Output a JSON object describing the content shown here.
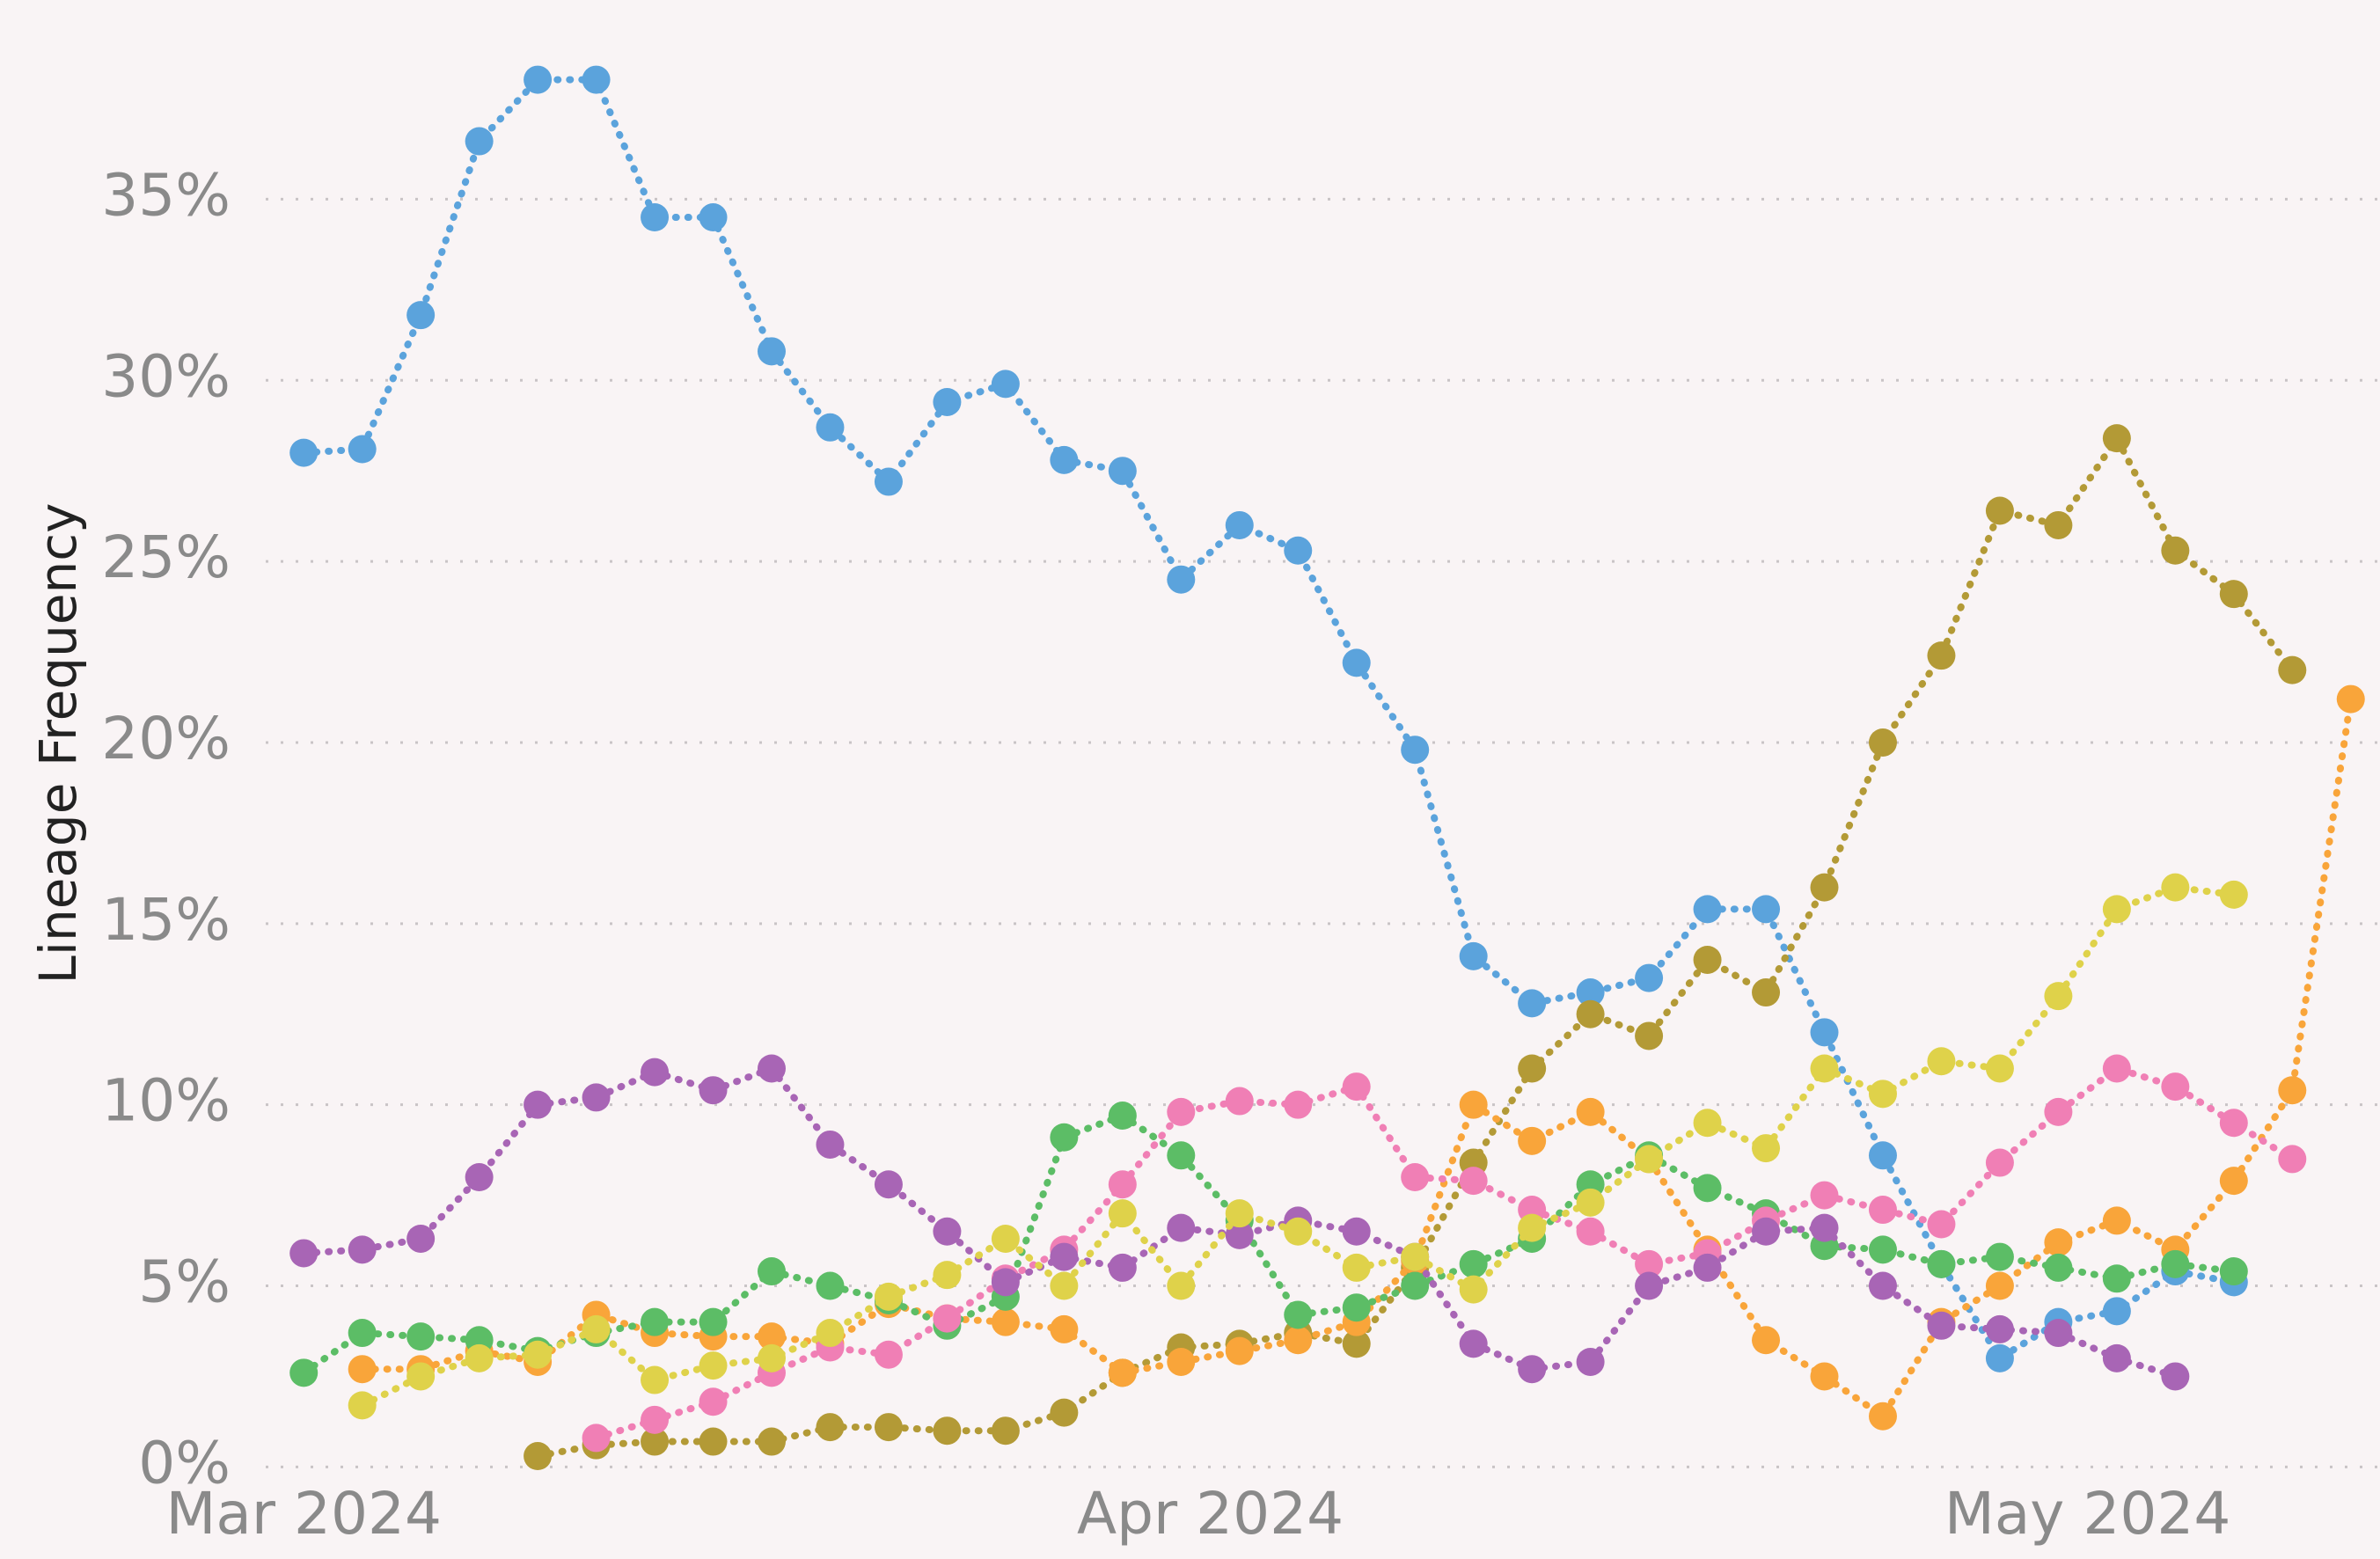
{
  "chart_data": {
    "type": "line",
    "y_label": "Lineage Frequency",
    "x": [
      0,
      2,
      4,
      6,
      8,
      10,
      12,
      14,
      16,
      18,
      20,
      22,
      24,
      26,
      28,
      30,
      32,
      34,
      36,
      38,
      40,
      42,
      44,
      46,
      48,
      50,
      52,
      54,
      56,
      58,
      60,
      62,
      64,
      66,
      68,
      70
    ],
    "xlim": [
      -1.3,
      71
    ],
    "xticks": [
      {
        "value": 0,
        "label": "Mar 2024"
      },
      {
        "value": 31,
        "label": "Apr 2024"
      },
      {
        "value": 61,
        "label": "May 2024"
      }
    ],
    "ylim": [
      -1.4,
      40.5
    ],
    "yticks": [
      {
        "value": 0,
        "label": "0%"
      },
      {
        "value": 5,
        "label": "5%"
      },
      {
        "value": 10,
        "label": "10%"
      },
      {
        "value": 15,
        "label": "15%"
      },
      {
        "value": 20,
        "label": "20%"
      },
      {
        "value": 25,
        "label": "25%"
      },
      {
        "value": 30,
        "label": "30%"
      },
      {
        "value": 35,
        "label": "35%"
      }
    ],
    "grid": true,
    "series": [
      {
        "color": "#5ba3dc",
        "values": [
          28,
          28.1,
          31.8,
          36.6,
          38.3,
          38.3,
          34.5,
          34.5,
          30.8,
          28.7,
          27.2,
          29.4,
          29.9,
          27.8,
          27.5,
          24.5,
          26,
          25.3,
          22.2,
          19.8,
          14.1,
          12.8,
          13.1,
          13.5,
          15.4,
          15.4,
          12,
          8.6,
          5.6,
          3,
          4,
          4.3,
          5.4,
          5.1,
          null,
          null
        ]
      },
      {
        "color": "#b39a36",
        "values": [
          null,
          null,
          null,
          null,
          0.3,
          0.6,
          0.7,
          0.7,
          0.7,
          1.1,
          1.1,
          1,
          1,
          1.5,
          2.6,
          3.3,
          3.4,
          3.7,
          3.4,
          5.5,
          8.4,
          11,
          12.5,
          11.9,
          14,
          13.1,
          16,
          20,
          22.4,
          26.4,
          26,
          28.4,
          25.3,
          24.1,
          22,
          null
        ]
      },
      {
        "color": "#f9a53a",
        "values": [
          null,
          2.7,
          2.7,
          3.2,
          2.9,
          4.2,
          3.7,
          3.6,
          3.6,
          3.4,
          4.5,
          4.1,
          4,
          3.8,
          2.6,
          2.9,
          3.2,
          3.5,
          4,
          5.7,
          10,
          9,
          9.8,
          8.5,
          6,
          3.5,
          2.5,
          1.4,
          4,
          5,
          6.2,
          6.8,
          6,
          7.9,
          10.4,
          21.2
        ]
      },
      {
        "color": "#5cbd66",
        "values": [
          2.6,
          3.7,
          3.6,
          3.5,
          3.2,
          3.7,
          4,
          4,
          5.4,
          5,
          4.6,
          3.9,
          4.7,
          9.1,
          9.7,
          8.6,
          6.8,
          4.2,
          4.4,
          5,
          5.6,
          6.3,
          7.8,
          8.6,
          7.7,
          7,
          6.1,
          6,
          5.6,
          5.8,
          5.5,
          5.2,
          5.6,
          5.4,
          null,
          null
        ]
      },
      {
        "color": "#f07fb5",
        "values": [
          null,
          null,
          null,
          null,
          null,
          0.8,
          1.3,
          1.8,
          2.6,
          3.3,
          3.1,
          4.1,
          5.2,
          6,
          7.8,
          9.8,
          10.1,
          10,
          10.5,
          8,
          7.9,
          7.1,
          6.5,
          5.6,
          5.9,
          6.8,
          7.5,
          7.1,
          6.7,
          8.4,
          9.8,
          11,
          10.5,
          9.5,
          8.5,
          null
        ]
      },
      {
        "color": "#a865b5",
        "values": [
          5.9,
          6,
          6.3,
          8,
          10,
          10.2,
          10.9,
          10.4,
          11,
          8.9,
          7.8,
          6.5,
          5.1,
          5.8,
          5.5,
          6.6,
          6.4,
          6.8,
          6.5,
          5.8,
          3.4,
          2.7,
          2.9,
          5,
          5.5,
          6.5,
          6.6,
          5,
          3.9,
          3.8,
          3.7,
          3,
          2.5,
          null,
          null,
          null
        ]
      },
      {
        "color": "#dfd24a",
        "values": [
          null,
          1.7,
          2.5,
          3,
          3.1,
          3.8,
          2.4,
          2.8,
          3,
          3.7,
          4.7,
          5.3,
          6.3,
          5,
          7,
          5,
          7,
          6.5,
          5.5,
          5.8,
          4.9,
          6.6,
          7.3,
          8.5,
          9.5,
          8.8,
          11,
          10.3,
          11.2,
          11,
          13,
          15.4,
          16,
          15.8,
          null,
          null
        ]
      }
    ]
  }
}
